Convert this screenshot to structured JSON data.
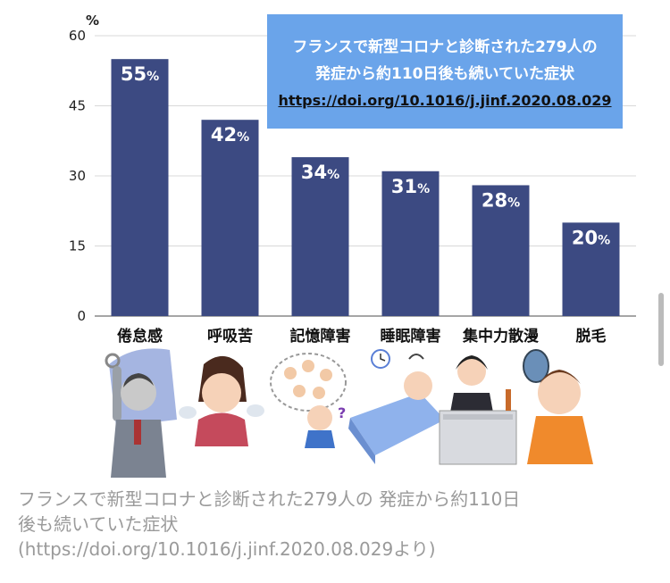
{
  "chart_data": {
    "type": "bar",
    "title_lines": [
      "フランスで新型コロナと診断された279人の",
      "発症から約110日後も続いていた症状"
    ],
    "source_link": "https://doi.org/10.1016/j.jinf.2020.08.029",
    "yunit": "%",
    "ylim": [
      0,
      60
    ],
    "yticks": [
      0,
      15,
      30,
      45,
      60
    ],
    "categories": [
      "倦怠感",
      "呼吸苦",
      "記憶障害",
      "睡眠障害",
      "集中力散漫",
      "脱毛"
    ],
    "values": [
      55,
      42,
      34,
      31,
      28,
      20
    ],
    "data_labels": [
      "55",
      "42",
      "34",
      "31",
      "28",
      "20"
    ],
    "data_label_suffix": "%",
    "grid": true,
    "bar_color": "#3c4a82",
    "box_color": "#6aa4ea"
  },
  "caption": {
    "line1": "フランスで新型コロナと診断された279人の 発症から約110日",
    "line2": "後も続いていた症状",
    "line3": "(https://doi.org/10.1016/j.jinf.2020.08.029より)"
  }
}
